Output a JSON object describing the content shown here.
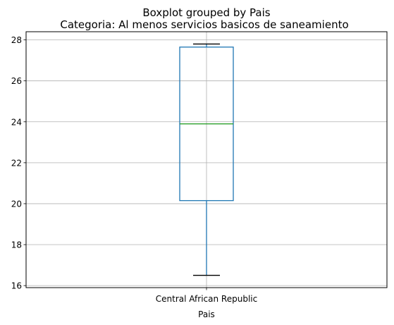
{
  "chart_data": {
    "type": "boxplot",
    "suptitle": "Boxplot grouped by Pais",
    "title": "Categoria: Al menos servicios basicos de saneamiento",
    "xlabel": "Pais",
    "ylabel": "",
    "categories": [
      "Central African Republic"
    ],
    "boxes": [
      {
        "category": "Central African Republic",
        "whisker_low": 16.5,
        "q1": 20.15,
        "median": 23.9,
        "q3": 27.65,
        "whisker_high": 27.8
      }
    ],
    "ylim": [
      15.9,
      28.4
    ],
    "yticks": [
      16,
      18,
      20,
      22,
      24,
      26,
      28
    ],
    "ytick_labels": [
      "16",
      "18",
      "20",
      "22",
      "24",
      "26",
      "28"
    ],
    "grid": true,
    "colors": {
      "box": "#1f77b4",
      "median": "#2ca02c",
      "caps": "#000000",
      "grid": "#b0b0b0"
    }
  }
}
